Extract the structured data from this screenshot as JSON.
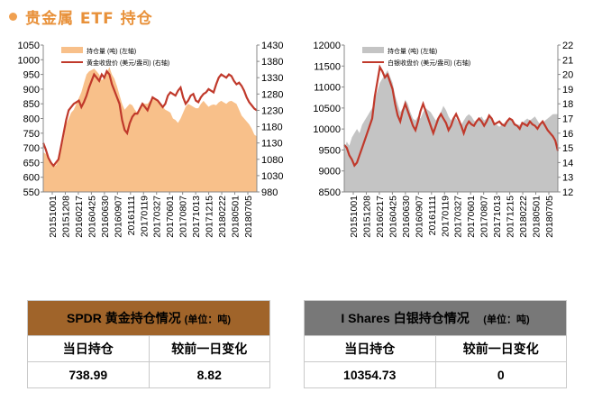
{
  "header": {
    "title": "贵金属 ETF 持仓",
    "accent": "#f0a050"
  },
  "chart_data": [
    {
      "type": "area",
      "legend": [
        "持仓量 (吨) (左轴)",
        "黄金收盘价 (美元/盎司) (右轴)"
      ],
      "legend_position": "top-left",
      "x_tick_labels": [
        "20151001",
        "20151208",
        "20160217",
        "20160425",
        "20160630",
        "20160907",
        "20161111",
        "20170119",
        "20170327",
        "20170601",
        "20170807",
        "20171013",
        "20171215",
        "20180222",
        "20180501",
        "20180705"
      ],
      "y_left": {
        "min": 550,
        "max": 1050,
        "ticks": [
          "550",
          "600",
          "650",
          "700",
          "750",
          "800",
          "850",
          "900",
          "950",
          "1000",
          "1050"
        ]
      },
      "y_right": {
        "min": 980,
        "max": 1430,
        "ticks": [
          "980",
          "1030",
          "1080",
          "1130",
          "1180",
          "1230",
          "1280",
          "1330",
          "1380",
          "1430"
        ]
      },
      "area_color": "#f8c08a",
      "line_color": "#c0392b",
      "holdings": [
        685,
        680,
        665,
        650,
        640,
        640,
        660,
        690,
        730,
        780,
        800,
        820,
        830,
        850,
        870,
        890,
        920,
        950,
        960,
        965,
        970,
        960,
        950,
        930,
        940,
        955,
        975,
        950,
        935,
        910,
        880,
        850,
        830,
        840,
        850,
        845,
        830,
        820,
        840,
        855,
        850,
        850,
        860,
        870,
        865,
        860,
        850,
        840,
        830,
        825,
        820,
        800,
        795,
        785,
        800,
        820,
        840,
        850,
        845,
        840,
        835,
        835,
        850,
        860,
        850,
        840,
        845,
        848,
        845,
        855,
        860,
        855,
        850,
        858,
        860,
        855,
        850,
        830,
        810,
        800,
        790,
        780,
        765,
        745,
        738.99
      ],
      "price": [
        1130,
        1110,
        1085,
        1070,
        1060,
        1070,
        1080,
        1120,
        1160,
        1200,
        1230,
        1240,
        1250,
        1255,
        1260,
        1240,
        1255,
        1275,
        1300,
        1320,
        1340,
        1330,
        1320,
        1340,
        1330,
        1350,
        1340,
        1310,
        1290,
        1270,
        1250,
        1200,
        1170,
        1160,
        1190,
        1210,
        1220,
        1220,
        1235,
        1250,
        1240,
        1230,
        1250,
        1270,
        1265,
        1260,
        1250,
        1240,
        1250,
        1275,
        1285,
        1280,
        1275,
        1290,
        1300,
        1270,
        1250,
        1260,
        1275,
        1280,
        1260,
        1255,
        1270,
        1280,
        1285,
        1295,
        1290,
        1285,
        1310,
        1330,
        1340,
        1335,
        1330,
        1340,
        1335,
        1320,
        1310,
        1315,
        1305,
        1290,
        1270,
        1255,
        1245,
        1235,
        1230
      ]
    },
    {
      "type": "area",
      "legend": [
        "持仓量 (吨) (左轴)",
        "白银收盘价 (美元/盎司) (右轴)"
      ],
      "legend_position": "top-left",
      "x_tick_labels": [
        "20151001",
        "20151208",
        "20160217",
        "20160425",
        "20160630",
        "20160907",
        "20161111",
        "20170119",
        "20170327",
        "20170601",
        "20170807",
        "20171013",
        "20171215",
        "20180222",
        "20180501",
        "20180705"
      ],
      "y_left": {
        "min": 8500,
        "max": 12000,
        "ticks": [
          "8500",
          "9000",
          "9500",
          "10000",
          "10500",
          "11000",
          "11500",
          "12000"
        ]
      },
      "y_right": {
        "min": 12,
        "max": 22,
        "ticks": [
          "12",
          "13",
          "14",
          "15",
          "16",
          "17",
          "18",
          "19",
          "20",
          "21",
          "22"
        ]
      },
      "area_color": "#c4c4c4",
      "line_color": "#c0392b",
      "holdings": [
        9500,
        9700,
        9600,
        9800,
        9900,
        10000,
        9900,
        10100,
        10200,
        10300,
        10400,
        10500,
        10700,
        10900,
        11100,
        11200,
        11300,
        11400,
        11250,
        11100,
        10800,
        10600,
        10400,
        10500,
        10700,
        10600,
        10400,
        10250,
        10200,
        10300,
        10250,
        10400,
        10500,
        10450,
        10400,
        10300,
        10200,
        10300,
        10400,
        10550,
        10450,
        10300,
        10200,
        10300,
        10250,
        10150,
        10100,
        10200,
        10300,
        10350,
        10300,
        10200,
        10150,
        10250,
        10300,
        10200,
        10250,
        10300,
        10200,
        10150,
        10100,
        10050,
        10100,
        10150,
        10200,
        10250,
        10200,
        10150,
        10100,
        10100,
        10150,
        10200,
        10250,
        10200,
        10250,
        10300,
        10200,
        10100,
        10150,
        10200,
        10250,
        10300,
        10350,
        10354.73,
        10354.73
      ],
      "price": [
        15.2,
        15.0,
        14.5,
        14.2,
        13.8,
        14.0,
        14.5,
        15.0,
        15.5,
        16.0,
        16.5,
        17.0,
        18.5,
        19.5,
        20.5,
        20.2,
        19.8,
        20.0,
        19.5,
        19.0,
        18.0,
        17.2,
        16.8,
        17.5,
        18.0,
        17.5,
        17.0,
        16.5,
        16.2,
        16.8,
        17.5,
        18.0,
        17.5,
        17.0,
        16.5,
        16.0,
        16.5,
        17.0,
        17.3,
        17.0,
        16.7,
        16.2,
        16.5,
        17.0,
        17.3,
        16.9,
        16.5,
        16.0,
        16.5,
        16.8,
        16.6,
        16.5,
        16.8,
        17.0,
        16.8,
        16.5,
        16.8,
        17.2,
        17.0,
        16.6,
        16.7,
        16.8,
        16.6,
        16.5,
        16.8,
        17.0,
        16.9,
        16.6,
        16.5,
        16.3,
        16.7,
        16.6,
        16.5,
        16.8,
        16.6,
        16.5,
        16.3,
        16.6,
        16.8,
        16.5,
        16.2,
        16.0,
        15.8,
        15.5,
        14.8
      ]
    }
  ],
  "gold_table": {
    "title": "SPDR 黄金持仓情况",
    "unit": "(单位：吨)",
    "col1": "当日持仓",
    "col2": "较前一日变化",
    "val1": "738.99",
    "val2": "8.82",
    "header_color": "#a0642a"
  },
  "silver_table": {
    "title": "I Shares 白银持仓情况",
    "unit": "(单位：吨)",
    "col1": "当日持仓",
    "col2": "较前一日变化",
    "val1": "10354.73",
    "val2": "0",
    "header_color": "#787878"
  }
}
